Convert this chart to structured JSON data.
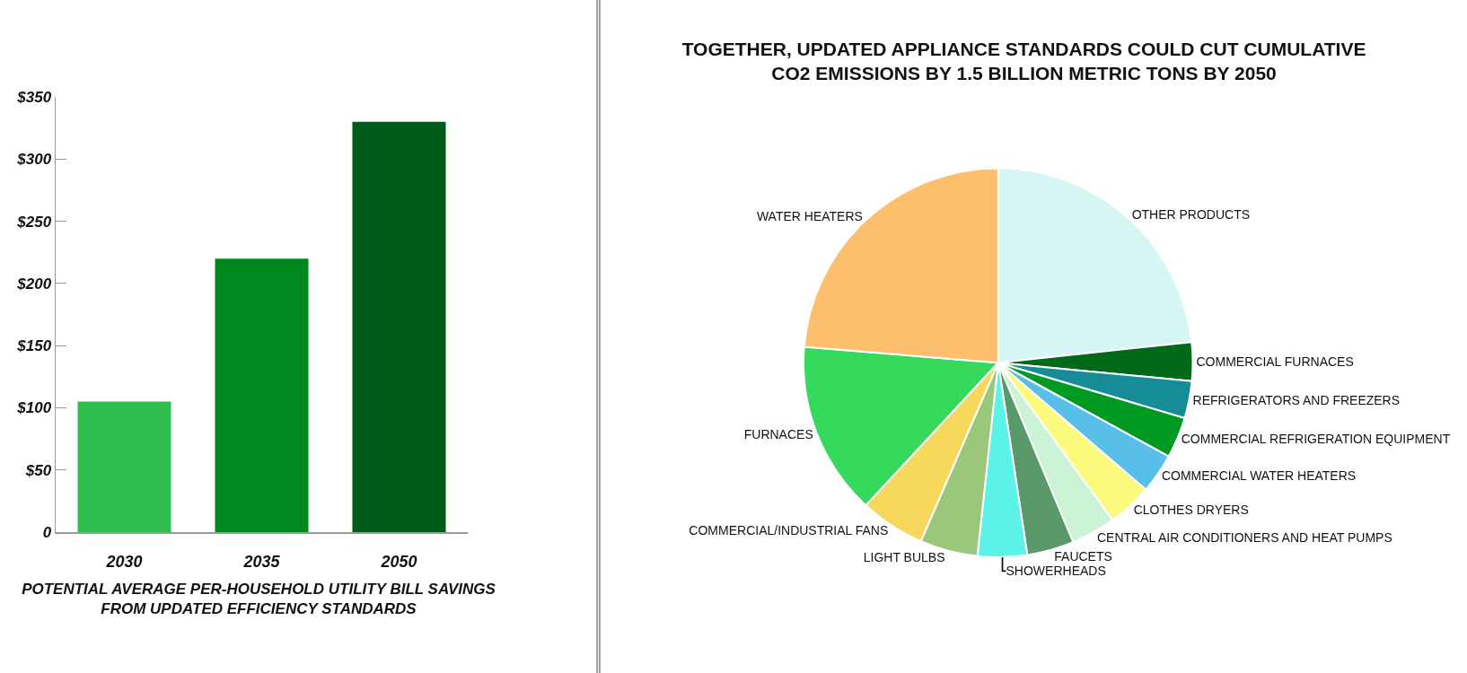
{
  "chart_data": [
    {
      "type": "bar",
      "title": "POTENTIAL AVERAGE PER-HOUSEHOLD UTILITY BILL SAVINGS FROM UPDATED EFFICIENCY STANDARDS",
      "categories": [
        "2030",
        "2035",
        "2050"
      ],
      "values": [
        105,
        220,
        330
      ],
      "colors": [
        "#2ebf4f",
        "#008820",
        "#005a18"
      ],
      "ylim": [
        0,
        350
      ],
      "yticks": [
        0,
        {
          "value": 50,
          "label": "$50"
        },
        {
          "value": 100,
          "label": "$100"
        },
        {
          "value": 150,
          "label": "$150"
        },
        {
          "value": 200,
          "label": "$200"
        },
        {
          "value": 250,
          "label": "$250"
        },
        {
          "value": 300,
          "label": "$300"
        },
        {
          "value": 350,
          "label": "$350"
        }
      ],
      "grid": false
    },
    {
      "type": "pie",
      "title": "TOGETHER, UPDATED APPLIANCE STANDARDS COULD CUT CUMULATIVE CO2 EMISSIONS BY 1.5 BILLION METRIC TONS BY 2050",
      "categories": [
        "OTHER PRODUCTS",
        "COMMERCIAL FURNACES",
        "REFRIGERATORS AND FREEZERS",
        "COMMERCIAL REFRIGERATION EQUIPMENT",
        "COMMERCIAL WATER HEATERS",
        "CLOTHES DRYERS",
        "CENTRAL AIR CONDITIONERS AND HEAT PUMPS",
        "FAUCETS",
        "SHOWERHEADS",
        "LIGHT BULBS",
        "COMMERCIAL/INDUSTRIAL FANS",
        "FURNACES",
        "WATER HEATERS"
      ],
      "values": [
        23.3,
        3.2,
        3.1,
        3.4,
        3.3,
        3.7,
        3.7,
        3.9,
        4.1,
        4.8,
        5.4,
        14.4,
        23.7
      ],
      "colors": [
        "#d6f6f4",
        "#006a1a",
        "#168d96",
        "#009a22",
        "#58c0e8",
        "#fdfb7e",
        "#cbf3d6",
        "#5a9a6a",
        "#5bf2e8",
        "#9bc77b",
        "#f6d95c",
        "#35da5c",
        "#fdbe6e"
      ]
    }
  ]
}
